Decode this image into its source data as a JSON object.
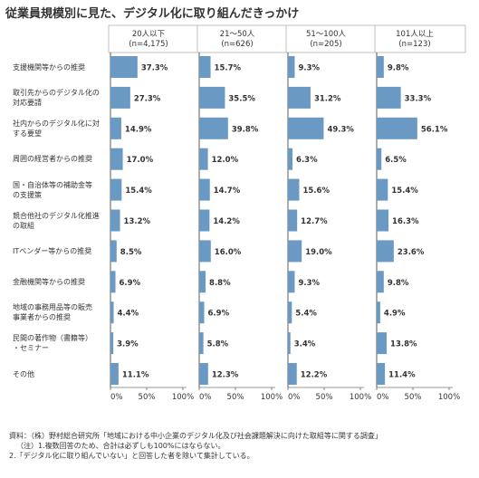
{
  "title": "従業員規模別に見た、デジタル化に取り組んだきっかけ",
  "chart_data": {
    "type": "bar",
    "orientation": "horizontal",
    "title": "従業員規模別に見た、デジタル化に取り組んだきっかけ",
    "colors": {
      "bar": "#6a9ac4",
      "axis": "#333333",
      "grid": "#cccccc"
    },
    "categories": [
      [
        "支援機関等からの推奨"
      ],
      [
        "取引先からのデジタル化の",
        "対応要請"
      ],
      [
        "社内からのデジタル化に対",
        "する要望"
      ],
      [
        "周囲の経営者からの推奨"
      ],
      [
        "国・自治体等の補助金等",
        "の支援策"
      ],
      [
        "競合他社のデジタル化推進",
        "の取組"
      ],
      [
        "ITベンダー等からの推奨"
      ],
      [
        "金融機関等からの推奨"
      ],
      [
        "地域の事務用品等の販売",
        "事業者からの推奨"
      ],
      [
        "民間の著作物（書籍等）",
        "・セミナー"
      ],
      [
        "その他"
      ]
    ],
    "series": [
      {
        "name": [
          "20人以下",
          "(n=4,175)"
        ],
        "values": [
          37.3,
          27.3,
          14.9,
          17.0,
          15.4,
          13.2,
          8.5,
          6.9,
          4.4,
          3.9,
          11.1
        ],
        "labels": [
          "37.3%",
          "27.3%",
          "14.9%",
          "17.0%",
          "15.4%",
          "13.2%",
          "8.5%",
          "6.9%",
          "4.4%",
          "3.9%",
          "11.1%"
        ]
      },
      {
        "name": [
          "21～50人",
          "(n=626)"
        ],
        "values": [
          15.7,
          35.5,
          39.8,
          12.0,
          14.7,
          14.2,
          16.0,
          8.8,
          6.9,
          5.8,
          12.3
        ],
        "labels": [
          "15.7%",
          "35.5%",
          "39.8%",
          "12.0%",
          "14.7%",
          "14.2%",
          "16.0%",
          "8.8%",
          "6.9%",
          "5.8%",
          "12.3%"
        ]
      },
      {
        "name": [
          "51～100人",
          "(n=205)"
        ],
        "values": [
          9.3,
          31.2,
          49.3,
          6.3,
          15.6,
          12.7,
          19.0,
          9.3,
          5.4,
          3.4,
          12.2
        ],
        "labels": [
          "9.3%",
          "31.2%",
          "49.3%",
          "6.3%",
          "15.6%",
          "12.7%",
          "19.0%",
          "9.3%",
          "5.4%",
          "3.4%",
          "12.2%"
        ]
      },
      {
        "name": [
          "101人以上",
          "(n=123)"
        ],
        "values": [
          9.8,
          33.3,
          56.1,
          6.5,
          15.4,
          16.3,
          23.6,
          9.8,
          4.9,
          13.8,
          11.4
        ],
        "labels": [
          "9.8%",
          "33.3%",
          "56.1%",
          "6.5%",
          "15.4%",
          "16.3%",
          "23.6%",
          "9.8%",
          "4.9%",
          "13.8%",
          "11.4%"
        ]
      }
    ],
    "xlim": [
      0,
      100
    ],
    "xticks": [
      0,
      50,
      100
    ],
    "xtick_labels": [
      "0%",
      "50%",
      "100%"
    ],
    "grid": false
  },
  "notes": [
    "資料：（株）野村総合研究所「地域における中小企業のデジタル化及び社会課題解決に向けた取組等に関する調査」",
    "（注）1.複数回答のため、合計は必ずしも100%にはならない。",
    "2.「デジタル化に取り組んでいない」と回答した者を除いて集計している。"
  ]
}
